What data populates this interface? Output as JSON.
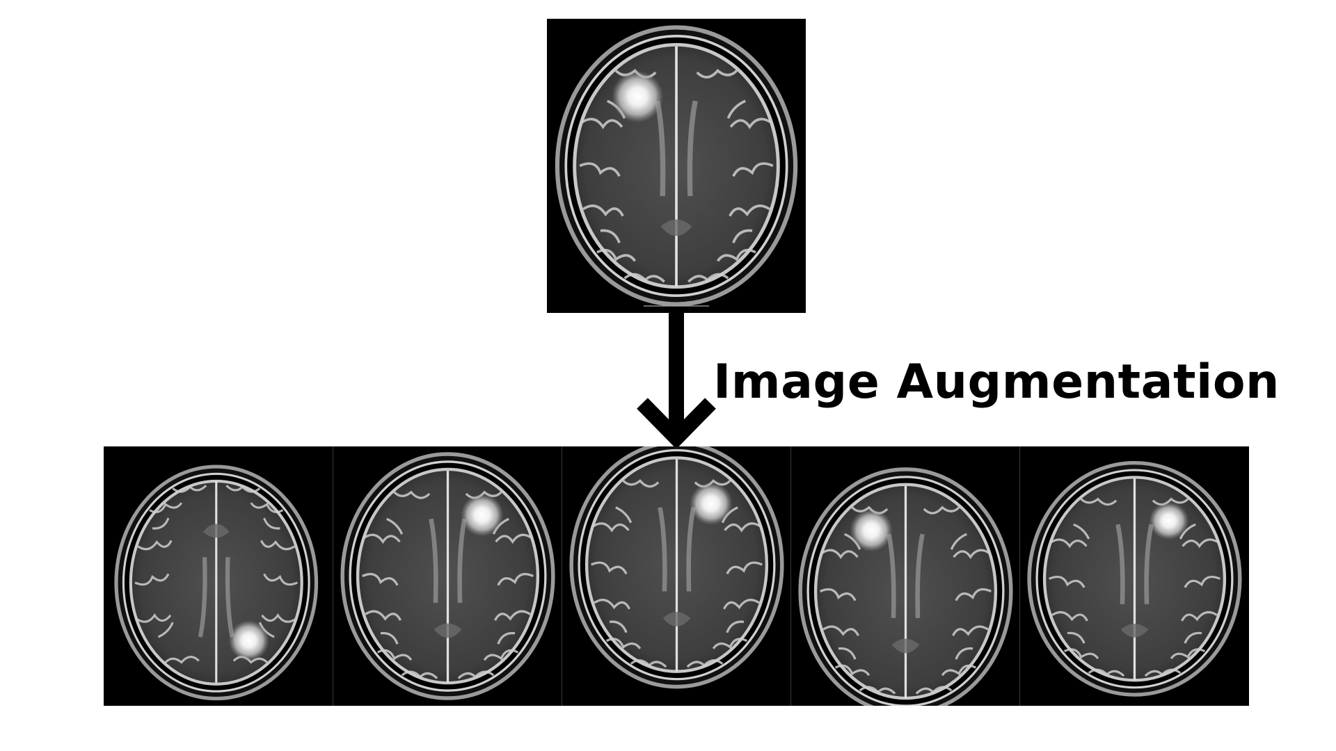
{
  "label": {
    "text": "Image Augmentation"
  },
  "images": {
    "original": {
      "icon": "mri-brain-scan-original"
    },
    "augmented": [
      {
        "icon": "mri-brain-scan-rotated"
      },
      {
        "icon": "mri-brain-scan-flipped"
      },
      {
        "icon": "mri-brain-scan-flipped-shifted"
      },
      {
        "icon": "mri-brain-scan-zoomed"
      },
      {
        "icon": "mri-brain-scan-scaled"
      }
    ]
  },
  "colors": {
    "background": "#ffffff",
    "scan_bg": "#000000",
    "arrow": "#000000",
    "text": "#000000"
  }
}
